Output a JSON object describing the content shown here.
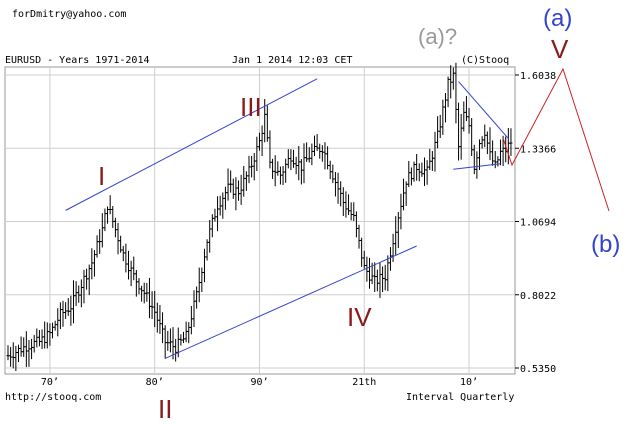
{
  "header": {
    "email": "forDmitry@yahoo.com",
    "title": "EURUSD - Years 1971-2014",
    "datetime": "Jan 1 2014 12:03 CET",
    "copyright": "(C)Stooq"
  },
  "footer": {
    "source": "http://stooq.com",
    "interval": "Interval Quarterly"
  },
  "wave_labels": {
    "I": "I",
    "II": "II",
    "III": "III",
    "IV": "IV",
    "V": "V",
    "a_question": "(a)?",
    "a": "(a)",
    "b": "(b)"
  },
  "colors": {
    "price": "#000000",
    "channel": "#3344cc",
    "wave_main": "#8b1a1a",
    "projection": "#cc2222",
    "wave_alt": "#999999",
    "grid": "#cfcfcf"
  },
  "chart_data": {
    "type": "ohlc",
    "title": "EURUSD - Years 1971-2014",
    "x_tick_labels": [
      "70’",
      "80’",
      "90’",
      "21th",
      "10’"
    ],
    "y_tick_labels": [
      "1.6038",
      "1.3366",
      "1.0694",
      "0.8022",
      "0.5350"
    ],
    "ylim": [
      0.535,
      1.6038
    ],
    "xlim": [
      1966.0,
      2014.1
    ],
    "grid": true,
    "series": [
      {
        "key": "price",
        "points": [
          [
            1966.0,
            0.58
          ],
          [
            1967.0,
            0.6
          ],
          [
            1968.0,
            0.62
          ],
          [
            1969.0,
            0.63
          ],
          [
            1970.0,
            0.66
          ],
          [
            1971.0,
            0.73
          ],
          [
            1972.0,
            0.76
          ],
          [
            1973.0,
            0.84
          ],
          [
            1974.0,
            0.92
          ],
          [
            1975.0,
            1.04
          ],
          [
            1975.5,
            1.13
          ],
          [
            1976.0,
            1.07
          ],
          [
            1977.0,
            0.95
          ],
          [
            1978.0,
            0.87
          ],
          [
            1979.0,
            0.81
          ],
          [
            1980.0,
            0.74
          ],
          [
            1981.0,
            0.63
          ],
          [
            1982.0,
            0.61
          ],
          [
            1983.0,
            0.65
          ],
          [
            1984.0,
            0.8
          ],
          [
            1985.0,
            1.0
          ],
          [
            1986.0,
            1.13
          ],
          [
            1987.0,
            1.19
          ],
          [
            1988.0,
            1.18
          ],
          [
            1989.0,
            1.25
          ],
          [
            1990.0,
            1.36
          ],
          [
            1990.5,
            1.45
          ],
          [
            1991.0,
            1.27
          ],
          [
            1992.0,
            1.24
          ],
          [
            1993.0,
            1.31
          ],
          [
            1994.0,
            1.27
          ],
          [
            1995.0,
            1.32
          ],
          [
            1996.0,
            1.34
          ],
          [
            1997.0,
            1.24
          ],
          [
            1998.0,
            1.14
          ],
          [
            1999.0,
            1.08
          ],
          [
            2000.0,
            0.9
          ],
          [
            2001.0,
            0.85
          ],
          [
            2002.0,
            0.87
          ],
          [
            2003.0,
            1.05
          ],
          [
            2004.0,
            1.22
          ],
          [
            2005.0,
            1.27
          ],
          [
            2006.0,
            1.25
          ],
          [
            2007.0,
            1.38
          ],
          [
            2008.0,
            1.57
          ],
          [
            2008.5,
            1.6
          ],
          [
            2009.0,
            1.34
          ],
          [
            2009.5,
            1.46
          ],
          [
            2010.0,
            1.42
          ],
          [
            2010.5,
            1.27
          ],
          [
            2011.0,
            1.36
          ],
          [
            2011.5,
            1.4
          ],
          [
            2012.0,
            1.31
          ],
          [
            2012.5,
            1.27
          ],
          [
            2013.0,
            1.32
          ],
          [
            2013.5,
            1.33
          ],
          [
            2014.0,
            1.36
          ]
        ],
        "lows_highs_note": ""
      }
    ],
    "channels": [
      {
        "key": "upper",
        "points": [
          [
            1971.5,
            1.11
          ],
          [
            1995.5,
            1.59
          ]
        ]
      },
      {
        "key": "lower",
        "points": [
          [
            1981.0,
            0.57
          ],
          [
            2005.0,
            0.98
          ]
        ]
      },
      {
        "key": "wedge_top",
        "points": [
          [
            2009.0,
            1.58
          ],
          [
            2013.8,
            1.37
          ]
        ]
      },
      {
        "key": "wedge_bottom",
        "points": [
          [
            2008.5,
            1.26
          ],
          [
            2013.0,
            1.28
          ]
        ]
      }
    ]
  }
}
